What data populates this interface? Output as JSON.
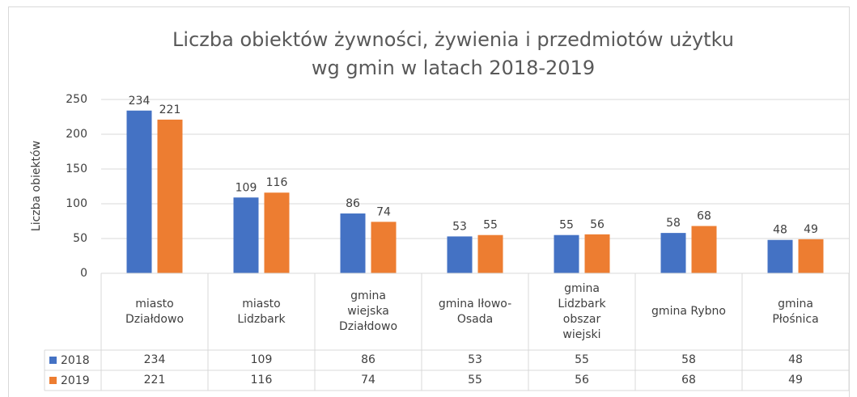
{
  "chart_data": {
    "type": "bar",
    "title": [
      "Liczba obiektów żywności, żywienia i przedmiotów użytku",
      "wg gmin w latach 2018-2019"
    ],
    "y_label": "Liczba obiektów",
    "categories": [
      "miasto Działdowo",
      "miasto Lidzbark",
      "gmina wiejska Działdowo",
      "gmina Iłowo-Osada",
      "gmina Lidzbark obszar wiejski",
      "gmina Rybno",
      "gmina Płośnica"
    ],
    "series": [
      {
        "name": "2018",
        "color": "#4472c4",
        "values": [
          234,
          109,
          86,
          53,
          55,
          58,
          48
        ]
      },
      {
        "name": "2019",
        "color": "#ed7d31",
        "values": [
          221,
          116,
          74,
          55,
          56,
          68,
          49
        ]
      }
    ],
    "ylim": [
      0,
      250
    ],
    "yticks": [
      0,
      50,
      100,
      150,
      200,
      250
    ],
    "grid": true,
    "data_table": true
  }
}
